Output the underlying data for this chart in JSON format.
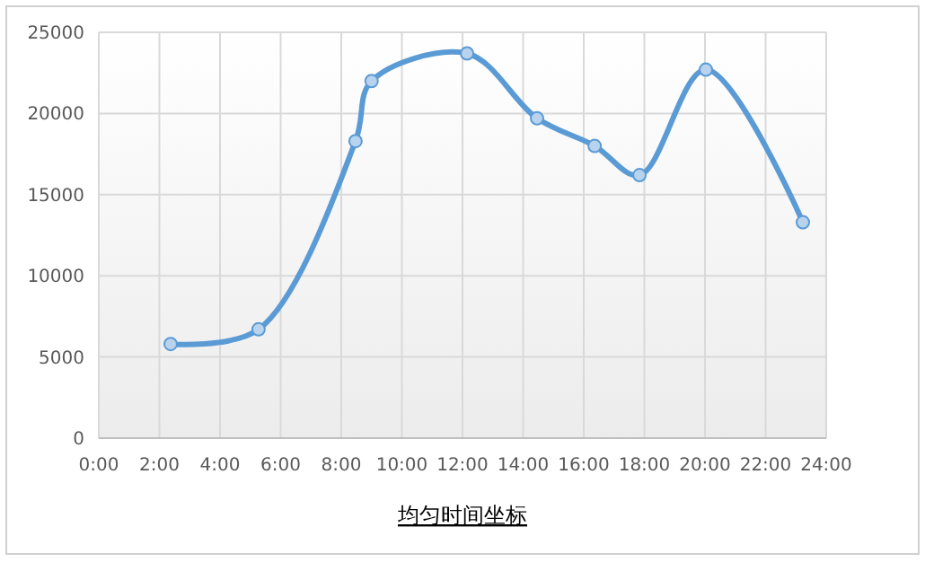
{
  "chart_data": {
    "type": "line",
    "xlabel": "均匀时间坐标",
    "x": [
      2.37,
      5.27,
      8.47,
      9.0,
      12.15,
      14.46,
      16.36,
      17.84,
      20.03,
      23.23
    ],
    "series": [
      {
        "color": "#5b9bd5",
        "values": [
          5800,
          6700,
          18300,
          22000,
          23700,
          19700,
          18000,
          16200,
          22700,
          13300
        ]
      }
    ],
    "xlim": [
      0,
      24
    ],
    "xticks": [
      {
        "value": 0,
        "label": "0:00"
      },
      {
        "value": 2,
        "label": "2:00"
      },
      {
        "value": 4,
        "label": "4:00"
      },
      {
        "value": 6,
        "label": "6:00"
      },
      {
        "value": 8,
        "label": "8:00"
      },
      {
        "value": 10,
        "label": "10:00"
      },
      {
        "value": 12,
        "label": "12:00"
      },
      {
        "value": 14,
        "label": "14:00"
      },
      {
        "value": 16,
        "label": "16:00"
      },
      {
        "value": 18,
        "label": "18:00"
      },
      {
        "value": 20,
        "label": "20:00"
      },
      {
        "value": 22,
        "label": "22:00"
      },
      {
        "value": 24,
        "label": "24:00"
      }
    ],
    "ylim": [
      0,
      25000
    ],
    "yticks": [
      0,
      5000,
      10000,
      15000,
      20000,
      25000
    ],
    "grid": true,
    "marker": "circle",
    "line_style": "solid"
  }
}
